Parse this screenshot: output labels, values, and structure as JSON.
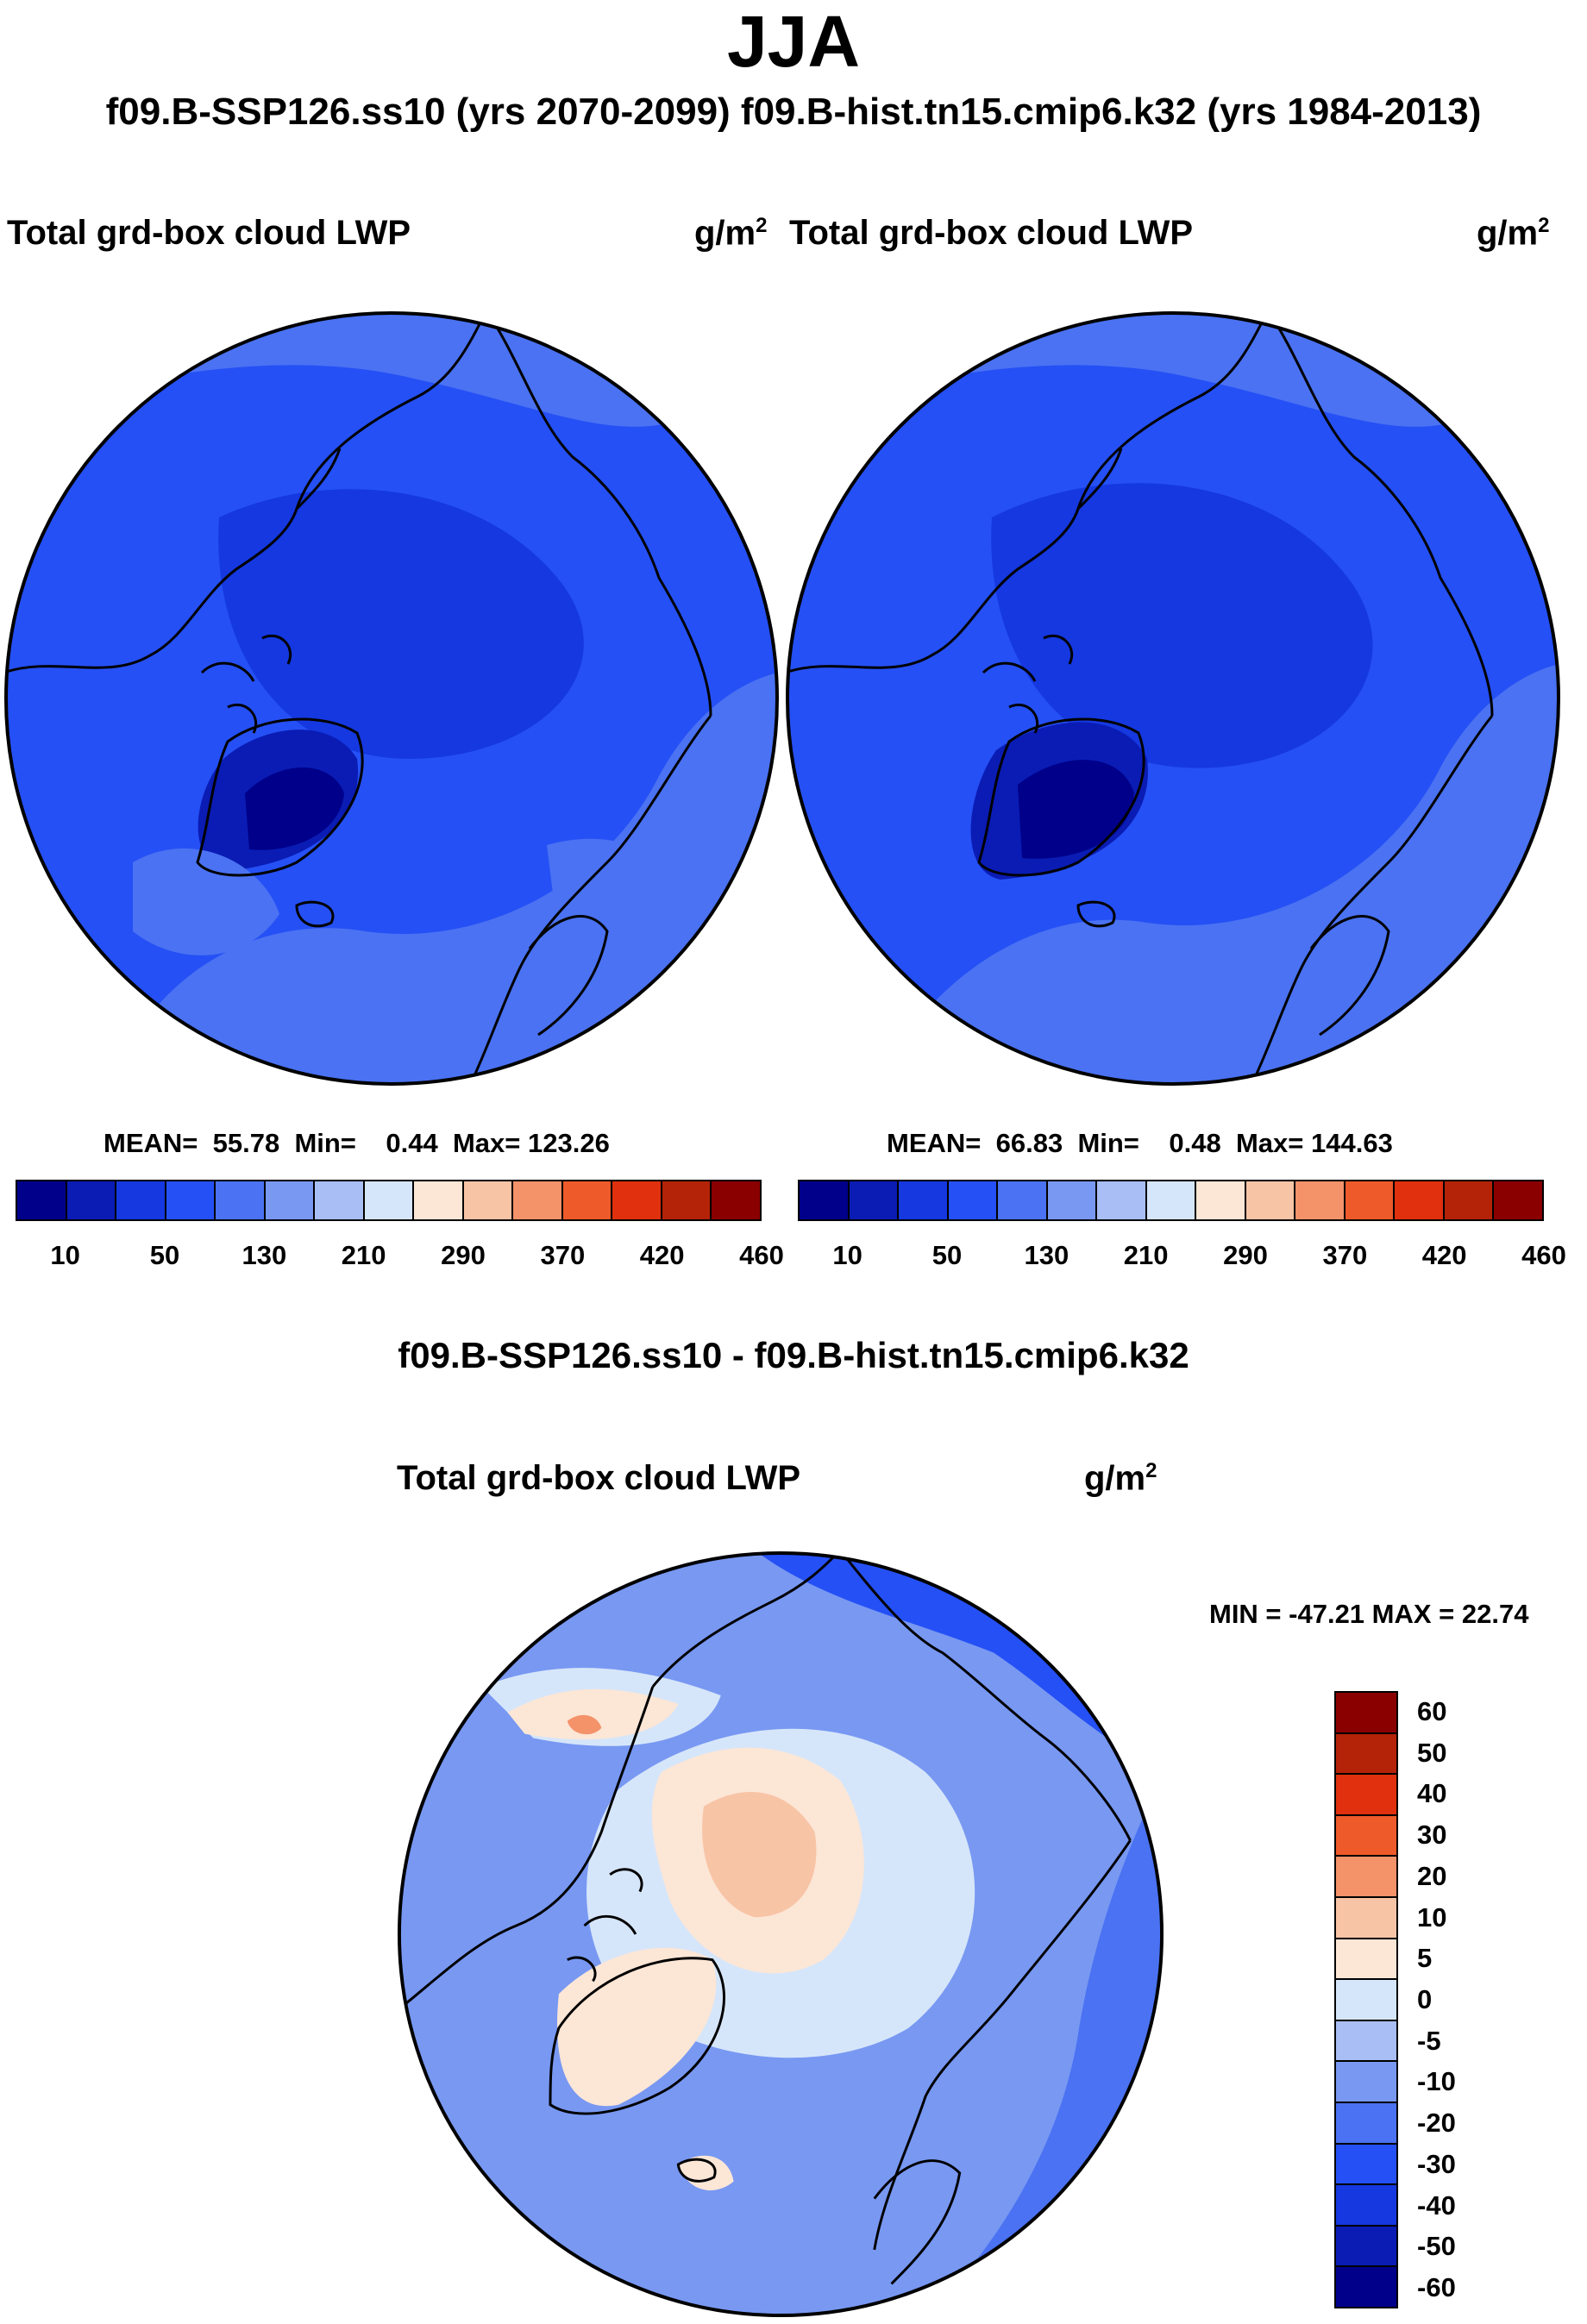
{
  "figure": {
    "season": "JJA",
    "subtitle": "f09.B-SSP126.ss10 (yrs 2070-2099)  f09.B-hist.tn15.cmip6.k32 (yrs 1984-2013)",
    "diff_title": "f09.B-SSP126.ss10 - f09.B-hist.tn15.cmip6.k32"
  },
  "chart_data": [
    {
      "type": "heatmap",
      "projection": "north polar stereographic",
      "case": "f09.B-SSP126.ss10 (yrs 2070-2099)",
      "title": "Total grd-box cloud LWP",
      "units_base": "g/m",
      "units_exp": "2",
      "stats": {
        "mean_label": "MEAN=",
        "mean": "55.78",
        "min_label": "Min=",
        "min": "0.44",
        "max_label": "Max=",
        "max": "123.26"
      },
      "colorbar": {
        "colors": [
          "#00008a",
          "#0a1cb4",
          "#1538e0",
          "#2550f5",
          "#4a72f2",
          "#7898f2",
          "#a8bef4",
          "#d6e6fa",
          "#fce6d6",
          "#f8c4a6",
          "#f4926a",
          "#ee5a2a",
          "#e0300e",
          "#b42208",
          "#8a0000"
        ],
        "tick_labels": [
          "10",
          "50",
          "130",
          "210",
          "290",
          "370",
          "420",
          "460"
        ]
      }
    },
    {
      "type": "heatmap",
      "projection": "north polar stereographic",
      "case": "f09.B-hist.tn15.cmip6.k32 (yrs 1984-2013)",
      "title": "Total grd-box cloud LWP",
      "units_base": "g/m",
      "units_exp": "2",
      "stats": {
        "mean_label": "MEAN=",
        "mean": "66.83",
        "min_label": "Min=",
        "min": "0.48",
        "max_label": "Max=",
        "max": "144.63"
      },
      "colorbar": {
        "colors": [
          "#00008a",
          "#0a1cb4",
          "#1538e0",
          "#2550f5",
          "#4a72f2",
          "#7898f2",
          "#a8bef4",
          "#d6e6fa",
          "#fce6d6",
          "#f8c4a6",
          "#f4926a",
          "#ee5a2a",
          "#e0300e",
          "#b42208",
          "#8a0000"
        ],
        "tick_labels": [
          "10",
          "50",
          "130",
          "210",
          "290",
          "370",
          "420",
          "460"
        ]
      }
    },
    {
      "type": "heatmap",
      "projection": "north polar stereographic",
      "case": "f09.B-SSP126.ss10 - f09.B-hist.tn15.cmip6.k32",
      "title": "Total grd-box cloud LWP",
      "units_base": "g/m",
      "units_exp": "2",
      "stats": {
        "label": "MIN = -47.21 MAX =  22.74",
        "min": -47.21,
        "max": 22.74
      },
      "colorbar": {
        "colors": [
          "#8a0000",
          "#b42208",
          "#e0300e",
          "#ee5a2a",
          "#f4926a",
          "#f8c4a6",
          "#fce6d6",
          "#d6e6fa",
          "#a8bef4",
          "#7898f2",
          "#4a72f2",
          "#2550f5",
          "#1538e0",
          "#0a1cb4",
          "#00008a"
        ],
        "tick_labels": [
          "60",
          "50",
          "40",
          "30",
          "20",
          "10",
          "5",
          "0",
          "-5",
          "-10",
          "-20",
          "-30",
          "-40",
          "-50",
          "-60"
        ]
      }
    }
  ]
}
